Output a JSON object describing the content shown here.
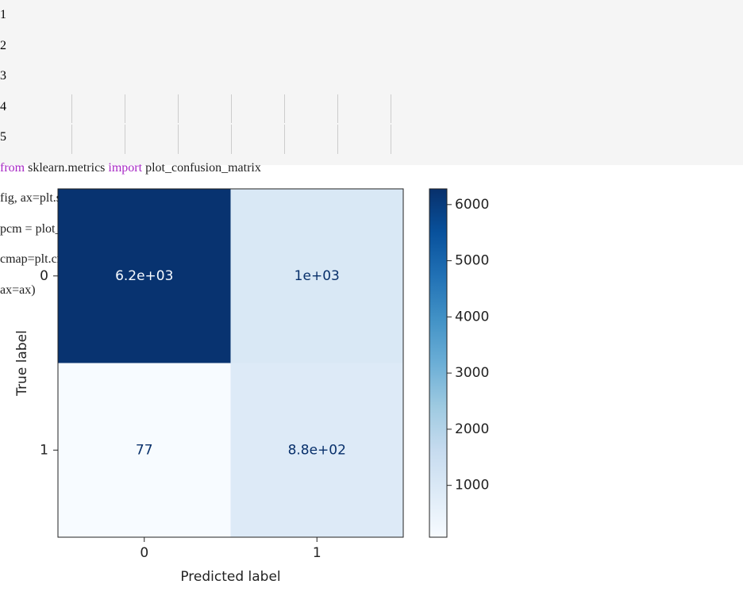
{
  "code": {
    "line_numbers": [
      "1",
      "2",
      "3",
      "4",
      "5"
    ],
    "lines": [
      [
        {
          "text": "from",
          "color": "#a626c4"
        },
        {
          "text": " sklearn.metrics ",
          "color": "#222222"
        },
        {
          "text": "import",
          "color": "#a626c4"
        },
        {
          "text": " plot_confusion_matrix",
          "color": "#222222"
        }
      ],
      [
        {
          "text": "fig, ax=plt.subplots()",
          "color": "#222222"
        }
      ],
      [
        {
          "text": "pcm = plot_confusion_matrix(xgb, X_val, y_val,",
          "color": "#222222"
        }
      ],
      [
        {
          "text": "                            cmap=plt.cm.Blues,",
          "color": "#222222"
        }
      ],
      [
        {
          "text": "                            ax=ax)",
          "color": "#222222"
        }
      ]
    ]
  },
  "chart_data": {
    "type": "heatmap",
    "xlabel": "Predicted label",
    "ylabel": "True label",
    "x_categories": [
      "0",
      "1"
    ],
    "y_categories": [
      "0",
      "1"
    ],
    "values": [
      [
        6200,
        1000
      ],
      [
        77,
        880
      ]
    ],
    "value_labels": [
      [
        "6.2e+03",
        "1e+03"
      ],
      [
        "77",
        "8.8e+02"
      ]
    ],
    "colormap": "Blues",
    "clim": [
      77,
      6280
    ],
    "cticks": [
      1000,
      2000,
      3000,
      4000,
      5000,
      6000
    ]
  }
}
